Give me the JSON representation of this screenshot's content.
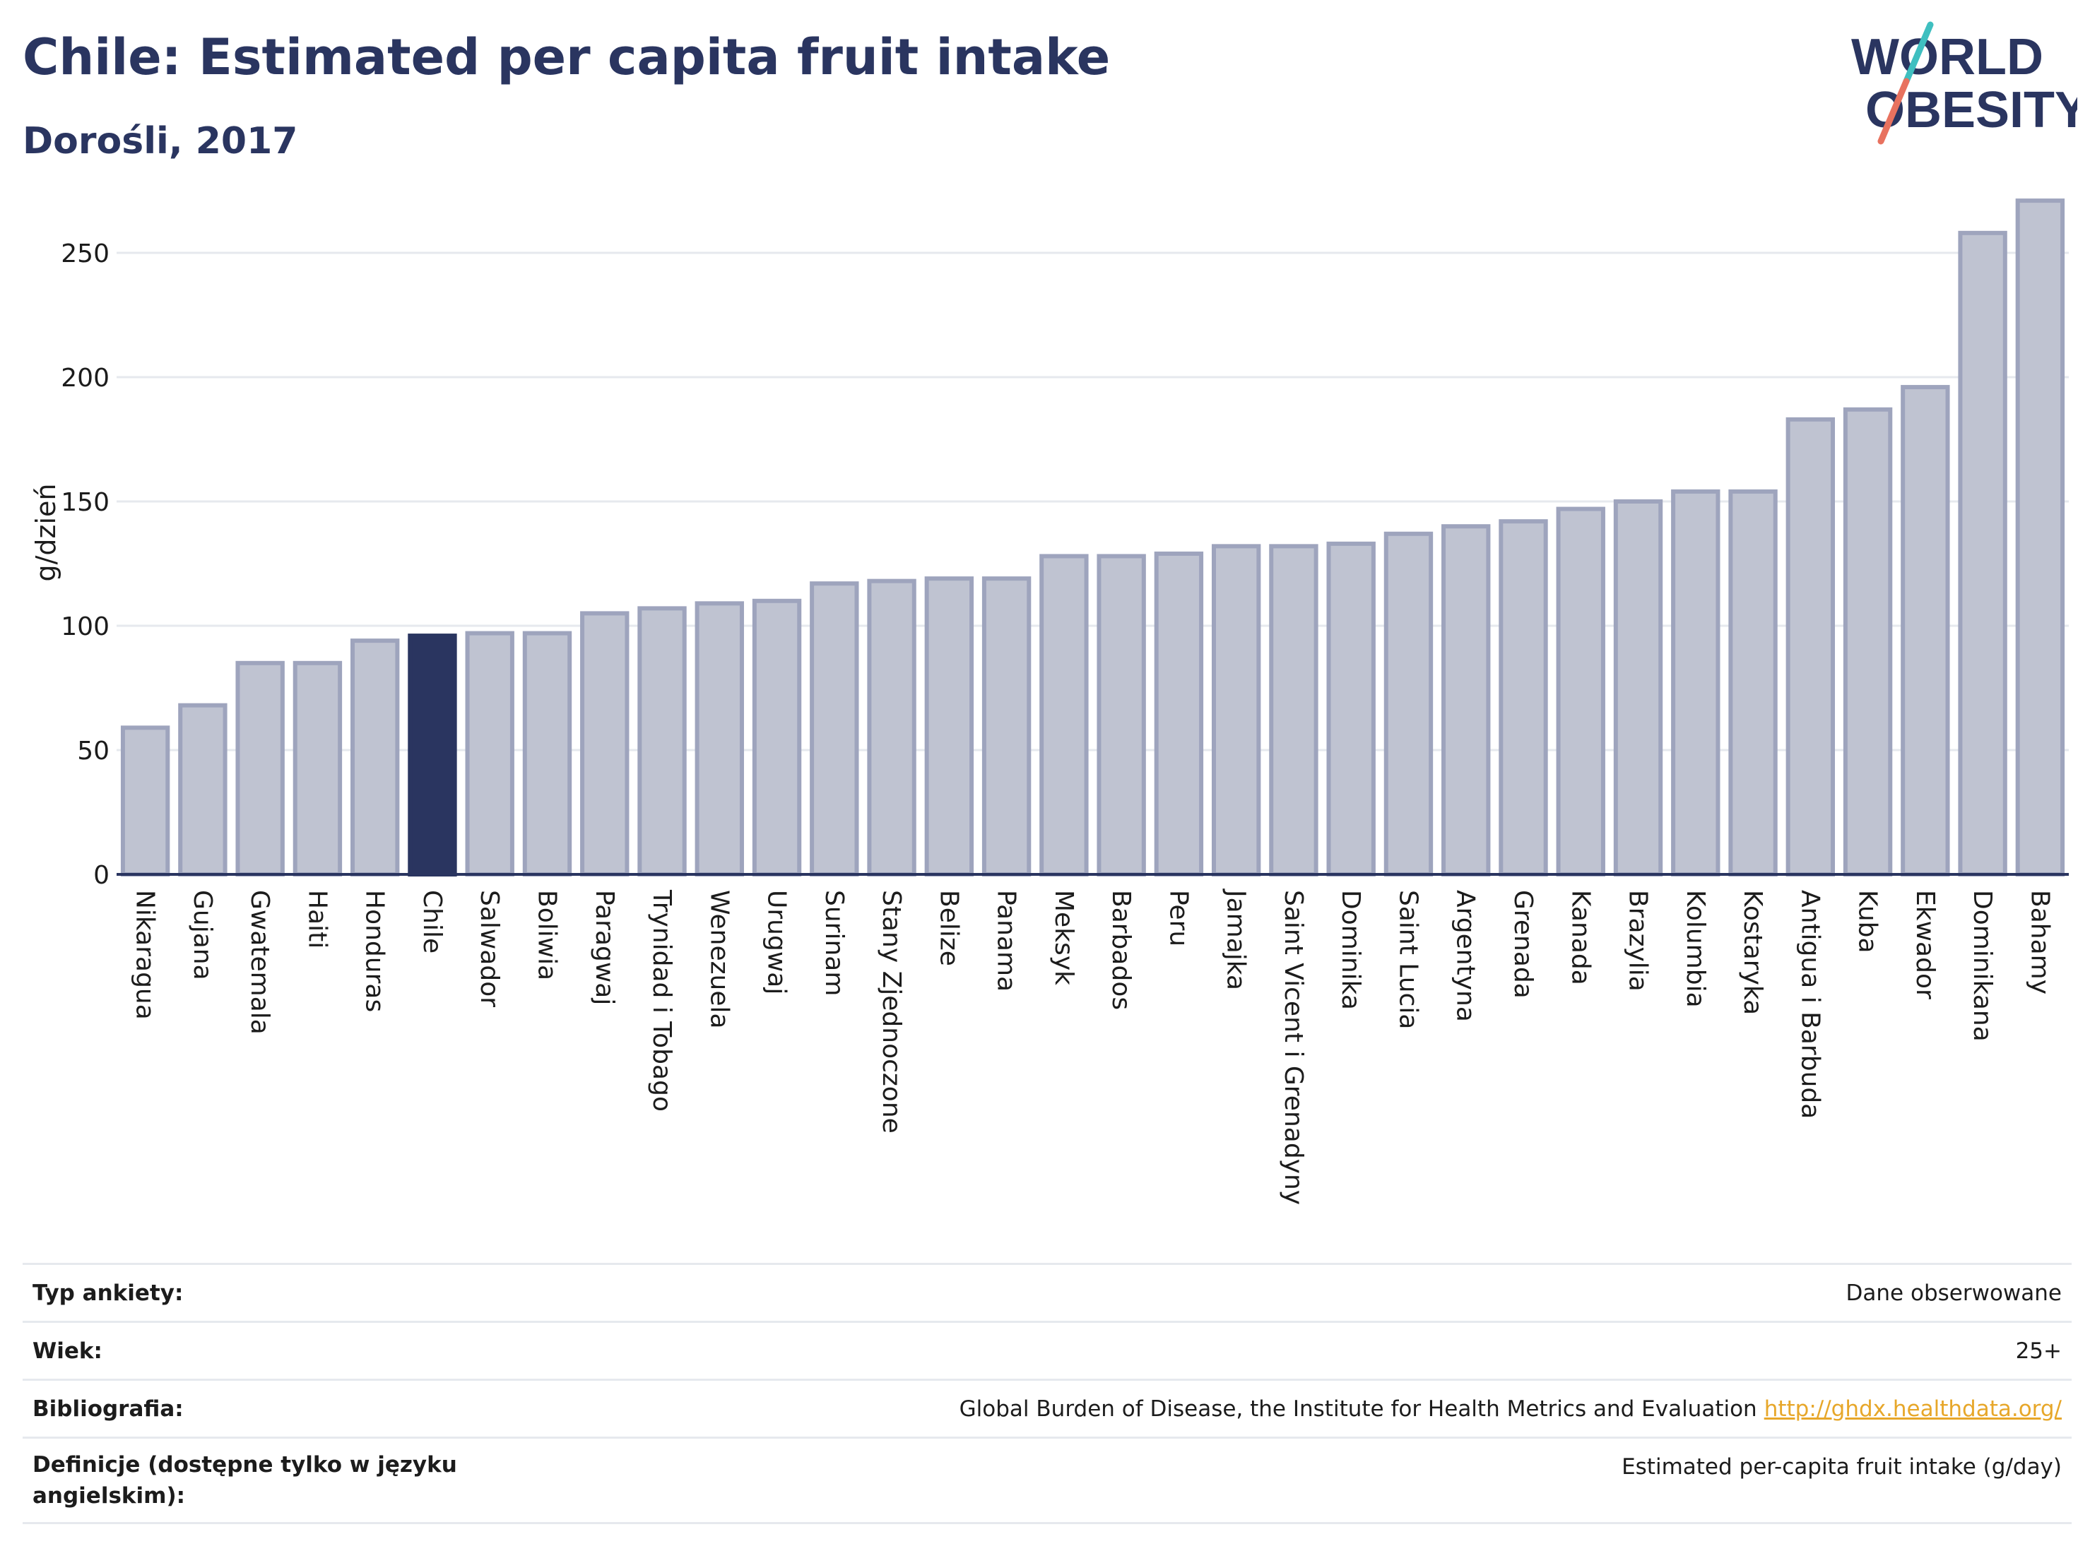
{
  "header": {
    "title": "Chile: Estimated per capita fruit intake",
    "subtitle": "Dorośli, 2017"
  },
  "logo": {
    "line1": "WORLD",
    "line2": "OBESITY",
    "colors": {
      "text": "#2a3560",
      "slash_teal": "#3fbfc0",
      "slash_coral": "#e8725f"
    }
  },
  "colors": {
    "bar": "#bfc3d1",
    "bar_border": "#9ea4bd",
    "highlight": "#2a3560",
    "grid": "#e6e9ee",
    "axis": "#2a3560"
  },
  "chart_data": {
    "type": "bar",
    "title": "Chile: Estimated per capita fruit intake",
    "subtitle": "Dorośli, 2017",
    "ylabel": "g/dzień",
    "xlabel": "",
    "ylim": [
      0,
      275
    ],
    "yticks": [
      0,
      50,
      100,
      150,
      200,
      250
    ],
    "grid": true,
    "highlight_category": "Chile",
    "categories": [
      "Nikaragua",
      "Gujana",
      "Gwatemala",
      "Haiti",
      "Honduras",
      "Chile",
      "Salwador",
      "Boliwia",
      "Paragwaj",
      "Trynidad i Tobago",
      "Wenezuela",
      "Urugwaj",
      "Surinam",
      "Stany Zjednoczone",
      "Belize",
      "Panama",
      "Meksyk",
      "Barbados",
      "Peru",
      "Jamajka",
      "Saint Vicent i Grenadyny",
      "Dominika",
      "Saint Lucia",
      "Argentyna",
      "Grenada",
      "Kanada",
      "Brazylia",
      "Kolumbia",
      "Kostaryka",
      "Antigua i Barbuda",
      "Kuba",
      "Ekwador",
      "Dominikana",
      "Bahamy"
    ],
    "values": [
      59,
      68,
      85,
      85,
      94,
      96,
      97,
      97,
      105,
      107,
      109,
      110,
      117,
      118,
      119,
      119,
      128,
      128,
      129,
      132,
      132,
      133,
      137,
      140,
      142,
      147,
      150,
      154,
      154,
      183,
      187,
      196,
      258,
      271
    ]
  },
  "info": [
    {
      "label": "Typ ankiety:",
      "value": "Dane obserwowane",
      "link": ""
    },
    {
      "label": "Wiek:",
      "value": "25+",
      "link": ""
    },
    {
      "label": "Bibliografia:",
      "value": "Global Burden of Disease, the Institute for Health Metrics and Evaluation",
      "link": "http://ghdx.healthdata.org/"
    },
    {
      "label": "Definicje (dostępne tylko w języku angielskim):",
      "value": "Estimated per-capita fruit intake (g/day)",
      "link": ""
    }
  ]
}
